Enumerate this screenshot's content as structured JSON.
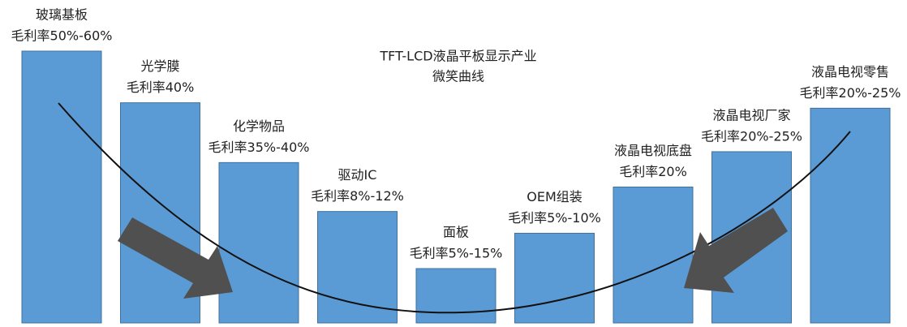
{
  "chart_data": {
    "type": "bar",
    "title": "TFT-LCD液晶平板显示产业",
    "subtitle": "微笑曲线",
    "categories": [
      "玻璃基板",
      "光学膜",
      "化学物品",
      "驱动IC",
      "面板",
      "OEM组装",
      "液晶电视底盘",
      "液晶电视厂家",
      "液晶电视零售"
    ],
    "margin_labels": [
      "毛利率50%-60%",
      "毛利率40%",
      "毛利率35%-40%",
      "毛利率8%-12%",
      "毛利率5%-15%",
      "毛利率5%-10%",
      "毛利率20%",
      "毛利率20%-25%",
      "毛利率20%-25%"
    ],
    "values": [
      100,
      81,
      59,
      41,
      20,
      33,
      50,
      63,
      79
    ],
    "ylim": [
      0,
      100
    ],
    "color": "#5b9bd5"
  }
}
